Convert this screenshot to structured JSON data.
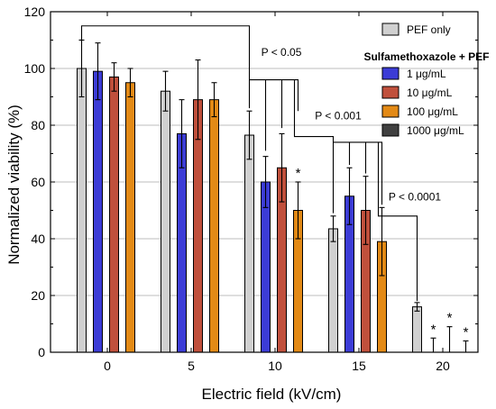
{
  "chart_data": {
    "type": "bar",
    "xlabel": "Electric field (kV/cm)",
    "ylabel": "Normalized viability (%)",
    "ylim": [
      0,
      120
    ],
    "yticks": [
      0,
      20,
      40,
      60,
      80,
      100,
      120
    ],
    "grid": true,
    "categories": [
      "0",
      "5",
      "10",
      "15",
      "20"
    ],
    "series": [
      {
        "name": "PEF only",
        "color": "#d0d0d0",
        "values": [
          100,
          92,
          76.5,
          43.5,
          16
        ],
        "errors": [
          10,
          7,
          8.5,
          4.5,
          1.5
        ]
      },
      {
        "name": "1 μg/mL",
        "color": "#3c3cd6",
        "values": [
          99,
          77,
          60,
          55,
          0
        ],
        "errors": [
          10,
          12,
          9,
          10,
          5
        ]
      },
      {
        "name": "10 μg/mL",
        "color": "#c0503c",
        "values": [
          97,
          89,
          65,
          50,
          0
        ],
        "errors": [
          5,
          14,
          12,
          12,
          9
        ]
      },
      {
        "name": "100 μg/mL",
        "color": "#e38a16",
        "values": [
          95,
          89,
          50,
          39,
          0
        ],
        "errors": [
          5,
          6,
          10,
          12,
          4
        ]
      },
      {
        "name": "1000 μg/mL",
        "color": "#404040",
        "values": [
          null,
          null,
          null,
          null,
          null
        ],
        "errors": [
          null,
          null,
          null,
          null,
          null
        ]
      }
    ],
    "legend": {
      "placement": "top-right",
      "group_title": "Sulfamethoxazole + PEF"
    },
    "annotations": {
      "significance": [
        "P < 0.05",
        "P < 0.001",
        "P < 0.0001"
      ],
      "star": "*",
      "star_marks": [
        {
          "category": "10",
          "series": "100 μg/mL"
        },
        {
          "category": "20",
          "series": "1 μg/mL"
        },
        {
          "category": "20",
          "series": "10 μg/mL"
        },
        {
          "category": "20",
          "series": "100 μg/mL"
        }
      ]
    }
  }
}
